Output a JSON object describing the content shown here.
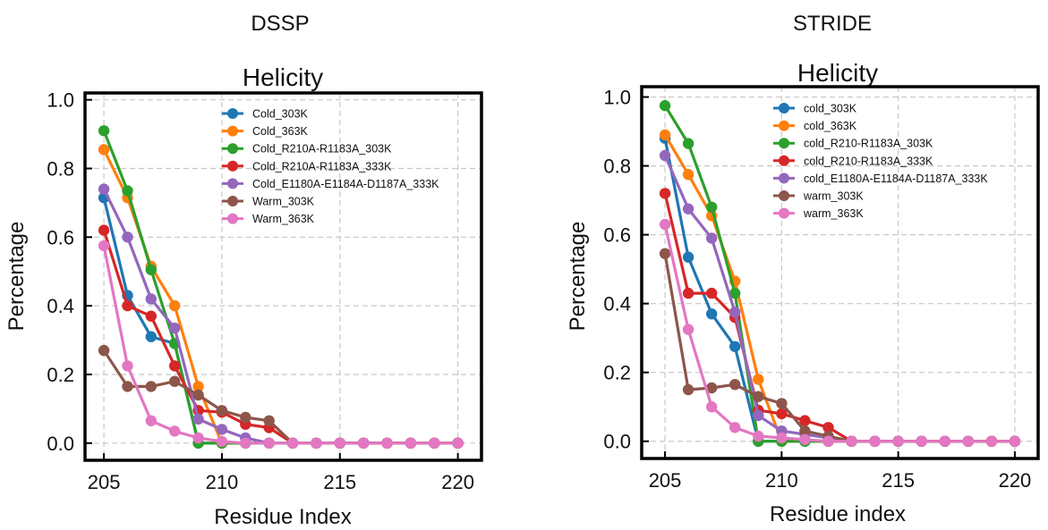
{
  "panels": [
    {
      "suptitle": "DSSP",
      "title": "Helicity",
      "xlabel": "Residue Index",
      "ylabel": "Percentage"
    },
    {
      "suptitle": "STRIDE",
      "title": "Helicity",
      "xlabel": "Residue index",
      "ylabel": "Percentage"
    }
  ],
  "chart_data": [
    {
      "type": "line",
      "title": "Helicity",
      "xlabel": "Residue Index",
      "ylabel": "Percentage",
      "xlim": [
        204.2,
        221.0
      ],
      "ylim": [
        -0.05,
        1.02
      ],
      "xticks": [
        205,
        210,
        215,
        220
      ],
      "yticks": [
        0.0,
        0.2,
        0.4,
        0.6,
        0.8,
        1.0
      ],
      "ytick_labels": [
        "0.0",
        "0.2",
        "0.4",
        "0.6",
        "0.8",
        "1.0"
      ],
      "grid": true,
      "legend": "top-right",
      "x": [
        205,
        206,
        207,
        208,
        209,
        210,
        211,
        212,
        213,
        214,
        215,
        216,
        217,
        218,
        219,
        220
      ],
      "series": [
        {
          "name": "Cold_303K",
          "color": "#1f77b4",
          "values": [
            0.715,
            0.43,
            0.31,
            0.29,
            0.0,
            0.0,
            0.0,
            0.0,
            0.0,
            0.0,
            0.0,
            0.0,
            0.0,
            0.0,
            0.0,
            0.0
          ]
        },
        {
          "name": "Cold_363K",
          "color": "#ff7f0e",
          "values": [
            0.855,
            0.715,
            0.515,
            0.4,
            0.165,
            0.0,
            0.0,
            0.0,
            0.0,
            0.0,
            0.0,
            0.0,
            0.0,
            0.0,
            0.0,
            0.0
          ]
        },
        {
          "name": "Cold_R210A-R1183A_303K",
          "color": "#2ca02c",
          "values": [
            0.91,
            0.735,
            0.505,
            0.29,
            0.0,
            0.0,
            0.0,
            0.0,
            0.0,
            0.0,
            0.0,
            0.0,
            0.0,
            0.0,
            0.0,
            0.0
          ]
        },
        {
          "name": "Cold_R210A-R1183A_333K",
          "color": "#d62728",
          "values": [
            0.62,
            0.4,
            0.37,
            0.225,
            0.095,
            0.09,
            0.055,
            0.045,
            0.0,
            0.0,
            0.0,
            0.0,
            0.0,
            0.0,
            0.0,
            0.0
          ]
        },
        {
          "name": "Cold_E1180A-E1184A-D1187A_333K",
          "color": "#9467bd",
          "values": [
            0.74,
            0.6,
            0.42,
            0.335,
            0.07,
            0.04,
            0.015,
            0.0,
            0.0,
            0.0,
            0.0,
            0.0,
            0.0,
            0.0,
            0.0,
            0.0
          ]
        },
        {
          "name": "Warm_303K",
          "color": "#8c564b",
          "values": [
            0.27,
            0.165,
            0.165,
            0.18,
            0.14,
            0.095,
            0.075,
            0.065,
            0.0,
            0.0,
            0.0,
            0.0,
            0.0,
            0.0,
            0.0,
            0.0
          ]
        },
        {
          "name": "Warm_363K",
          "color": "#e377c2",
          "values": [
            0.575,
            0.225,
            0.065,
            0.035,
            0.015,
            0.005,
            0.0,
            0.0,
            0.0,
            0.0,
            0.0,
            0.0,
            0.0,
            0.0,
            0.0,
            0.0
          ]
        }
      ]
    },
    {
      "type": "line",
      "title": "Helicity",
      "xlabel": "Residue index",
      "ylabel": "Percentage",
      "xlim": [
        204.0,
        221.0
      ],
      "ylim": [
        -0.05,
        1.03
      ],
      "xticks": [
        205,
        210,
        215,
        220
      ],
      "yticks": [
        0.0,
        0.2,
        0.4,
        0.6,
        0.8,
        1.0
      ],
      "ytick_labels": [
        "0.0",
        "0.2",
        "0.4",
        "0.6",
        "0.8",
        "1.0"
      ],
      "grid": true,
      "legend": "top-right",
      "x": [
        205,
        206,
        207,
        208,
        209,
        210,
        211,
        212,
        213,
        214,
        215,
        216,
        217,
        218,
        219,
        220
      ],
      "series": [
        {
          "name": "cold_303K",
          "color": "#1f77b4",
          "values": [
            0.88,
            0.535,
            0.37,
            0.275,
            0.0,
            0.0,
            0.0,
            0.0,
            0.0,
            0.0,
            0.0,
            0.0,
            0.0,
            0.0,
            0.0,
            0.0
          ]
        },
        {
          "name": "cold_363K",
          "color": "#ff7f0e",
          "values": [
            0.89,
            0.775,
            0.655,
            0.465,
            0.18,
            0.0,
            0.0,
            0.0,
            0.0,
            0.0,
            0.0,
            0.0,
            0.0,
            0.0,
            0.0,
            0.0
          ]
        },
        {
          "name": "cold_R210-R1183A_303K",
          "color": "#2ca02c",
          "values": [
            0.975,
            0.865,
            0.68,
            0.43,
            0.0,
            0.0,
            0.0,
            0.0,
            0.0,
            0.0,
            0.0,
            0.0,
            0.0,
            0.0,
            0.0,
            0.0
          ]
        },
        {
          "name": "cold_R210-R1183A_333K",
          "color": "#d62728",
          "values": [
            0.72,
            0.43,
            0.43,
            0.36,
            0.09,
            0.08,
            0.06,
            0.04,
            0.0,
            0.0,
            0.0,
            0.0,
            0.0,
            0.0,
            0.0,
            0.0
          ]
        },
        {
          "name": "cold_E1180A-E1184A-D1187A_333K",
          "color": "#9467bd",
          "values": [
            0.83,
            0.675,
            0.59,
            0.375,
            0.075,
            0.03,
            0.02,
            0.01,
            0.0,
            0.0,
            0.0,
            0.0,
            0.0,
            0.0,
            0.0,
            0.0
          ]
        },
        {
          "name": "warm_303K",
          "color": "#8c564b",
          "values": [
            0.545,
            0.15,
            0.155,
            0.165,
            0.13,
            0.11,
            0.03,
            0.015,
            0.0,
            0.0,
            0.0,
            0.0,
            0.0,
            0.0,
            0.0,
            0.0
          ]
        },
        {
          "name": "warm_363K",
          "color": "#e377c2",
          "values": [
            0.63,
            0.325,
            0.1,
            0.04,
            0.015,
            0.01,
            0.005,
            0.0,
            0.0,
            0.0,
            0.0,
            0.0,
            0.0,
            0.0,
            0.0,
            0.0
          ]
        }
      ]
    }
  ]
}
